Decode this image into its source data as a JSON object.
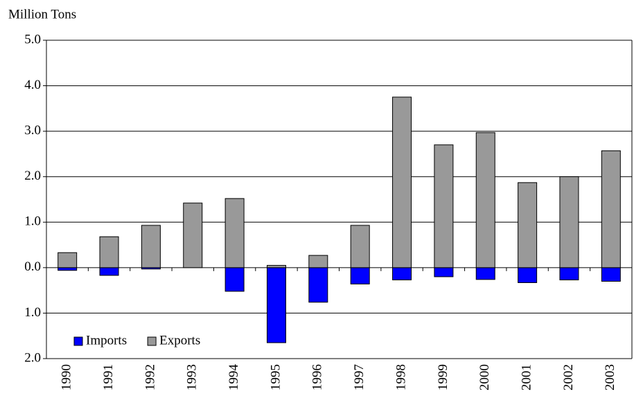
{
  "chart_data": {
    "type": "bar",
    "y_label": "Million Tons",
    "categories": [
      "1990",
      "1991",
      "1992",
      "1993",
      "1994",
      "1995",
      "1996",
      "1997",
      "1998",
      "1999",
      "2000",
      "2001",
      "2002",
      "2003"
    ],
    "series": [
      {
        "name": "Imports",
        "color": "#0000ff",
        "values": [
          -0.06,
          -0.17,
          -0.03,
          0,
          -0.52,
          -1.65,
          -0.76,
          -0.36,
          -0.27,
          -0.2,
          -0.26,
          -0.33,
          -0.27,
          -0.3
        ]
      },
      {
        "name": "Exports",
        "color": "#999999",
        "values": [
          0.33,
          0.68,
          0.93,
          1.42,
          1.52,
          0.05,
          0.27,
          0.93,
          3.75,
          2.7,
          2.97,
          1.87,
          2.0,
          2.57
        ]
      }
    ],
    "ylim": [
      -2,
      5
    ],
    "yticks": [
      {
        "value": -2,
        "label": "2.0"
      },
      {
        "value": -1,
        "label": "1.0"
      },
      {
        "value": 0,
        "label": "0.0"
      },
      {
        "value": 1,
        "label": "1.0"
      },
      {
        "value": 2,
        "label": "2.0"
      },
      {
        "value": 3,
        "label": "3.0"
      },
      {
        "value": 4,
        "label": "4.0"
      },
      {
        "value": 5,
        "label": "5.0"
      }
    ],
    "negative_tick_color": "#cc0000",
    "grid": true,
    "legend": "lower left"
  }
}
